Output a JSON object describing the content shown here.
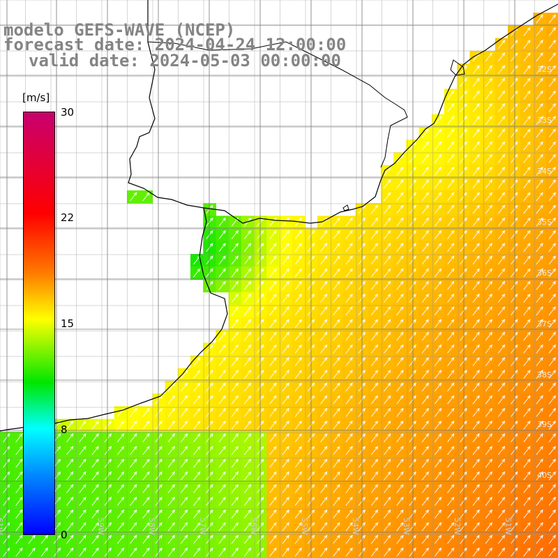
{
  "title": {
    "model": "modelo GEFS-WAVE (NCEP)",
    "forecast": "forecast date: 2024-04-24 12:00:00",
    "valid": "valid date: 2024-05-03 00:00:00"
  },
  "colorbar": {
    "unit": "[m/s]",
    "ticks": [
      "30",
      "22",
      "15",
      "8",
      "0"
    ]
  },
  "map": {
    "parameter": "wind speed",
    "unit": "m/s",
    "arrow_direction": "northeast",
    "lon_labels": [
      "61W",
      "60W",
      "59W",
      "58W",
      "57W",
      "56W",
      "55W",
      "54W",
      "53W",
      "52W",
      "51W"
    ],
    "lat_labels": [
      "32S",
      "33S",
      "34S",
      "35S",
      "36S",
      "37S",
      "38S",
      "39S",
      "40S"
    ],
    "colors": {
      "land": "#ffffff",
      "coast": "#000000",
      "grid": "#777777",
      "arrows": "#ffffff"
    }
  }
}
